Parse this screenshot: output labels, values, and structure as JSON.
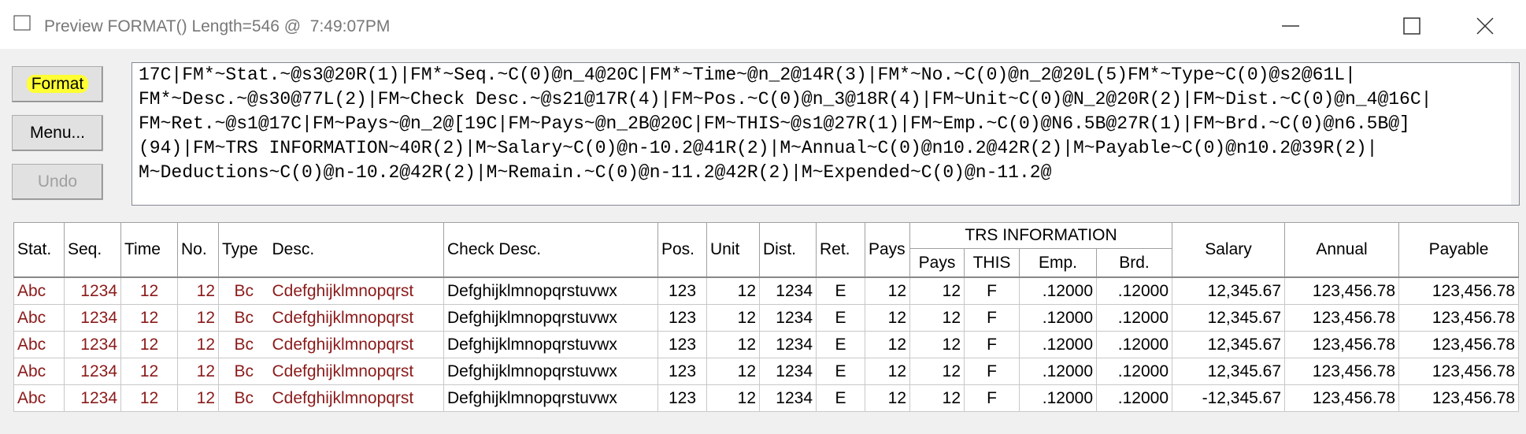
{
  "window": {
    "title": "Preview FORMAT() Length=546 @  7:49:07PM"
  },
  "buttons": {
    "format": "Format",
    "menu": "Menu...",
    "undo": "Undo"
  },
  "format_text": {
    "lines": [
      "17C|FM*~Stat.~@s3@20R(1)|FM*~Seq.~C(0)@n_4@20C|FM*~Time~@n_2@14R(3)|FM*~No.~C(0)@n_2@20L(5)FM*~Type~C(0)@s2@61L|",
      "FM*~Desc.~@s30@77L(2)|FM~Check Desc.~@s21@17R(4)|FM~Pos.~C(0)@n_3@18R(4)|FM~Unit~C(0)@N_2@20R(2)|FM~Dist.~C(0)@n_4@16C|",
      "FM~Ret.~@s1@17C|FM~Pays~@n_2@[19C|FM~Pays~@n_2B@20C|FM~THIS~@s1@27R(1)|FM~Emp.~C(0)@N6.5B@27R(1)|FM~Brd.~C(0)@n6.5B@]",
      "(94)|FM~TRS INFORMATION~40R(2)|M~Salary~C(0)@n-10.2@41R(2)|M~Annual~C(0)@n10.2@42R(2)|M~Payable~C(0)@n10.2@39R(2)|",
      "M~Deductions~C(0)@n-10.2@42R(2)|M~Remain.~C(0)@n-11.2@42R(2)|M~Expended~C(0)@n-11.2@"
    ]
  },
  "table": {
    "header_left": [
      "Stat.",
      "Seq.",
      "Time",
      "No.",
      "Type",
      "Desc.",
      "Check Desc.",
      "Pos.",
      "Unit",
      "Dist.",
      "Ret.",
      "Pays"
    ],
    "group_header": "TRS INFORMATION",
    "group_columns": [
      "Pays",
      "THIS",
      "Emp.",
      "Brd."
    ],
    "header_right": [
      "Salary",
      "Annual",
      "Payable"
    ],
    "rows": [
      [
        "Abc",
        "1234",
        "12",
        "12",
        "Bc",
        "Cdefghijklmnopqrst",
        "Defghijklmnopqrstuvwx",
        "123",
        "12",
        "1234",
        "E",
        "12",
        "12",
        "F",
        ".12000",
        ".12000",
        "12,345.67",
        "123,456.78",
        "123,456.78"
      ],
      [
        "Abc",
        "1234",
        "12",
        "12",
        "Bc",
        "Cdefghijklmnopqrst",
        "Defghijklmnopqrstuvwx",
        "123",
        "12",
        "1234",
        "E",
        "12",
        "12",
        "F",
        ".12000",
        ".12000",
        "12,345.67",
        "123,456.78",
        "123,456.78"
      ],
      [
        "Abc",
        "1234",
        "12",
        "12",
        "Bc",
        "Cdefghijklmnopqrst",
        "Defghijklmnopqrstuvwx",
        "123",
        "12",
        "1234",
        "E",
        "12",
        "12",
        "F",
        ".12000",
        ".12000",
        "12,345.67",
        "123,456.78",
        "123,456.78"
      ],
      [
        "Abc",
        "1234",
        "12",
        "12",
        "Bc",
        "Cdefghijklmnopqrst",
        "Defghijklmnopqrstuvwx",
        "123",
        "12",
        "1234",
        "E",
        "12",
        "12",
        "F",
        ".12000",
        ".12000",
        "12,345.67",
        "123,456.78",
        "123,456.78"
      ],
      [
        "Abc",
        "1234",
        "12",
        "12",
        "Bc",
        "Cdefghijklmnopqrst",
        "Defghijklmnopqrstuvwx",
        "123",
        "12",
        "1234",
        "E",
        "12",
        "12",
        "F",
        ".12000",
        ".12000",
        "-12,345.67",
        "123,456.78",
        "123,456.78"
      ]
    ]
  }
}
